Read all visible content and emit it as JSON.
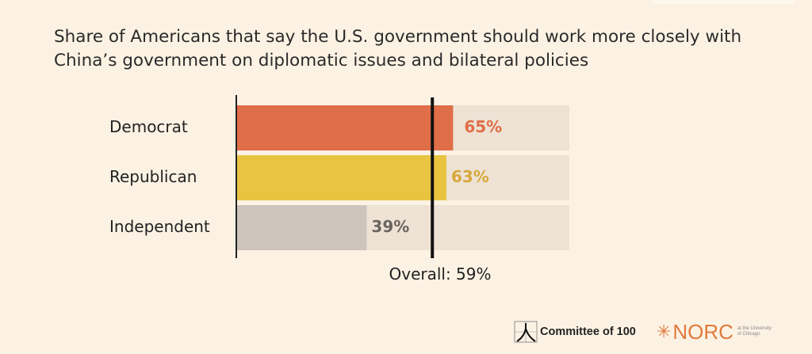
{
  "chart_data": {
    "type": "bar",
    "orientation": "horizontal",
    "title": "Share of Americans that say the U.S. government should work more closely with China’s government on diplomatic issues and bilateral policies",
    "categories": [
      "Democrat",
      "Republican",
      "Independent"
    ],
    "values": [
      65,
      63,
      39
    ],
    "value_labels": [
      "65%",
      "63%",
      "39%"
    ],
    "colors": [
      "#e06e48",
      "#e9c441",
      "#cdc4bb"
    ],
    "label_colors": [
      "#e06e48",
      "#d9a83a",
      "#6b6560"
    ],
    "track_color": "#ede2d4",
    "xlim": [
      0,
      100
    ],
    "reference_line": {
      "value": 59,
      "label": "Overall: 59%"
    }
  },
  "footer": {
    "logo_1": "Committee of 100",
    "logo_2": "NORC",
    "logo_2_sub": "at the University of Chicago"
  }
}
